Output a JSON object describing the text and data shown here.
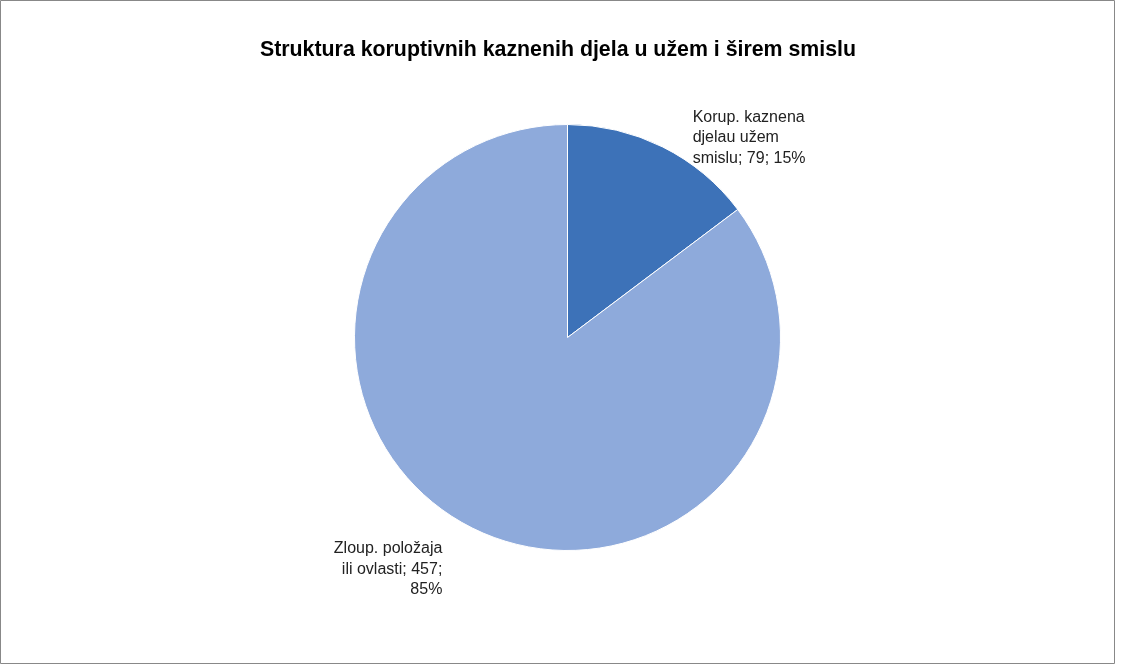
{
  "chart_data": {
    "type": "pie",
    "title": "Struktura koruptivnih kaznenih djela u užem i širem smislu",
    "categories": [
      "Korup. kaznena djelau užem smislu",
      "Zloup. položaja ili ovlasti"
    ],
    "values": [
      79,
      457
    ],
    "colors": [
      "#3d72b8",
      "#8eaadb"
    ],
    "value_labels": [
      "79; 15%",
      "457; 85%"
    ]
  }
}
